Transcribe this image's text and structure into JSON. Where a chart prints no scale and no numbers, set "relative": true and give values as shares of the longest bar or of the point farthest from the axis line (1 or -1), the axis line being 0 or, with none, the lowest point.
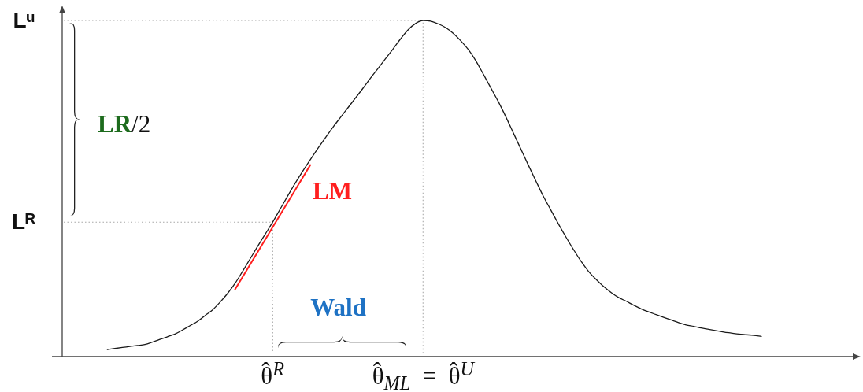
{
  "chart_data": {
    "type": "line",
    "relative": true,
    "marker": "none",
    "categories": [
      null,
      null,
      null,
      null,
      null,
      null,
      null,
      null,
      null,
      null,
      null,
      null,
      null,
      null,
      null,
      null,
      null,
      null,
      null,
      null,
      null,
      null,
      null,
      null,
      null,
      null,
      null,
      null,
      "θ̂$^{R}$",
      null,
      null,
      null,
      null,
      null,
      null,
      null,
      null,
      null,
      null,
      null,
      null,
      null,
      null,
      null,
      null,
      null,
      null,
      null,
      "θ̂$_{ML}$ = θ̂$^{U}$",
      null,
      null,
      null,
      null,
      null,
      null,
      null,
      null,
      null,
      null,
      null,
      null,
      null,
      null,
      null,
      null,
      null,
      null,
      null,
      null,
      null,
      null,
      null,
      null,
      null,
      null,
      null,
      null,
      null,
      null,
      null,
      null,
      null,
      null,
      null,
      null,
      null,
      null,
      null,
      null,
      null,
      null,
      null,
      null,
      null,
      null,
      null,
      null,
      null,
      null,
      null,
      null,
      null,
      null,
      null,
      null,
      null,
      null
    ],
    "series": [
      {
        "color": "#1a1a1a",
        "values": [
          null,
          null,
          null,
          null,
          null,
          null,
          0.021,
          0.024,
          0.027,
          0.03,
          0.033,
          0.036,
          0.043,
          0.051,
          0.059,
          0.067,
          0.079,
          0.092,
          0.105,
          0.122,
          0.139,
          0.162,
          0.188,
          0.218,
          0.254,
          0.291,
          0.328,
          0.364,
          0.4,
          0.439,
          0.478,
          0.516,
          0.552,
          0.586,
          0.619,
          0.651,
          0.682,
          0.711,
          0.74,
          0.769,
          0.798,
          0.828,
          0.857,
          0.886,
          0.915,
          0.945,
          0.972,
          0.991,
          1,
          0.998,
          0.99,
          0.979,
          0.962,
          0.94,
          0.914,
          0.881,
          0.841,
          0.8,
          0.759,
          0.714,
          0.666,
          0.618,
          0.57,
          0.523,
          0.477,
          0.436,
          0.395,
          0.356,
          0.319,
          0.284,
          0.254,
          0.23,
          0.209,
          0.191,
          0.176,
          0.165,
          0.153,
          0.142,
          0.133,
          0.125,
          0.117,
          0.109,
          0.101,
          0.094,
          0.09,
          0.085,
          0.081,
          0.077,
          0.073,
          0.07,
          0.067,
          0.065,
          0.063,
          0.06,
          null,
          null,
          null,
          null,
          null,
          null,
          null,
          null,
          null,
          null,
          null,
          null,
          null
        ]
      },
      {
        "name": "LM",
        "color": "#ff1f1f",
        "values": [
          null,
          null,
          null,
          null,
          null,
          null,
          null,
          null,
          null,
          null,
          null,
          null,
          null,
          null,
          null,
          null,
          null,
          null,
          null,
          null,
          null,
          null,
          null,
          0.2,
          0.237,
          0.274,
          0.311,
          0.348,
          0.385,
          0.422,
          0.459,
          0.496,
          0.533,
          0.57,
          null,
          null,
          null,
          null,
          null,
          null,
          null,
          null,
          null,
          null,
          null,
          null,
          null,
          null,
          null,
          null,
          null,
          null,
          null,
          null,
          null,
          null,
          null,
          null,
          null,
          null,
          null,
          null,
          null,
          null,
          null,
          null,
          null,
          null,
          null,
          null,
          null,
          null,
          null,
          null,
          null,
          null,
          null,
          null,
          null,
          null,
          null,
          null,
          null,
          null,
          null,
          null,
          null,
          null,
          null,
          null,
          null,
          null,
          null,
          null,
          null,
          null,
          null,
          null,
          null,
          null,
          null,
          null,
          null,
          null,
          null,
          null,
          null
        ]
      }
    ],
    "ref_lines": [
      {
        "axis": "y",
        "value": 1,
        "label": "Lᵘ",
        "color": "#a8a8a8",
        "line_style": "dotted"
      },
      {
        "axis": "y",
        "value": 0.4,
        "label": "Lᴿ",
        "color": "#a8a8a8",
        "line_style": "dotted"
      }
    ],
    "annotations": [
      "LR/2",
      "Wald"
    ]
  }
}
